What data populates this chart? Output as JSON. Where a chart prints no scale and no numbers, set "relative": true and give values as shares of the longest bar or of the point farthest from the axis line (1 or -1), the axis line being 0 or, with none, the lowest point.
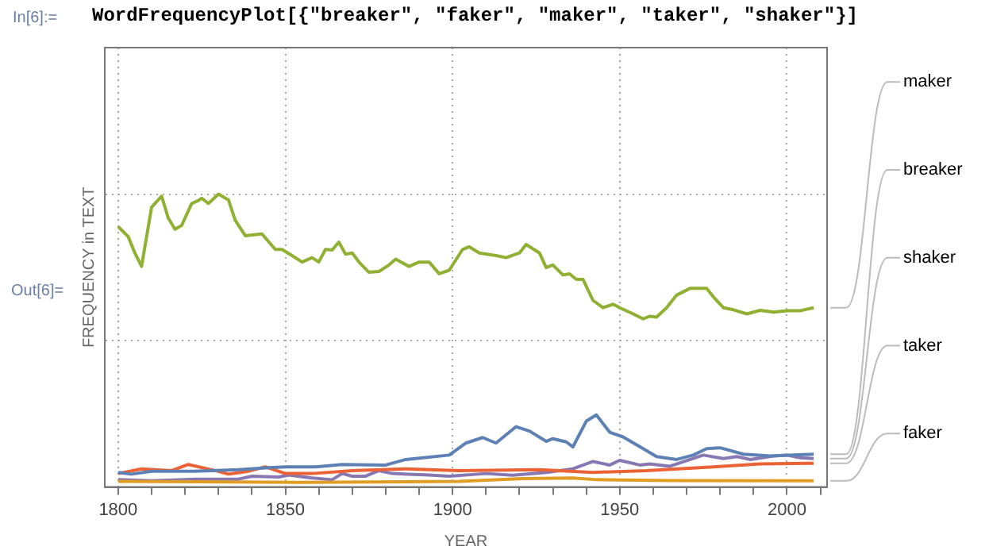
{
  "chart_data": {
    "type": "line",
    "relative": true,
    "xlabel": "YEAR",
    "ylabel": "FREQUENCY in TEXT",
    "annotations": [
      "In[6]:=",
      "WordFrequencyPlot[{\"breaker\", \"faker\", \"maker\", \"taker\", \"shaker\"}]",
      "Out[6]="
    ],
    "xlim": [
      1796,
      2012
    ],
    "xticks": [
      1800,
      {
        "value": 1810,
        "label": null
      },
      {
        "value": 1820,
        "label": null
      },
      {
        "value": 1830,
        "label": null
      },
      {
        "value": 1840,
        "label": null
      },
      1850,
      {
        "value": 1860,
        "label": null
      },
      {
        "value": 1870,
        "label": null
      },
      {
        "value": 1880,
        "label": null
      },
      {
        "value": 1890,
        "label": null
      },
      1900,
      {
        "value": 1910,
        "label": null
      },
      {
        "value": 1920,
        "label": null
      },
      {
        "value": 1930,
        "label": null
      },
      {
        "value": 1940,
        "label": null
      },
      1950,
      {
        "value": 1960,
        "label": null
      },
      {
        "value": 1970,
        "label": null
      },
      {
        "value": 1980,
        "label": null
      },
      {
        "value": 1990,
        "label": null
      },
      2000,
      {
        "value": 2010,
        "label": null
      }
    ],
    "grid": true,
    "marker": "none",
    "line_style": "solid",
    "series": [
      {
        "name": "breaker",
        "color": "#5e81b5",
        "x": [
          1800,
          1804,
          1810,
          1823,
          1836,
          1844,
          1850,
          1859,
          1867,
          1880,
          1886,
          1893,
          1899,
          1904,
          1909,
          1913,
          1919,
          1923,
          1928,
          1930,
          1934,
          1936,
          1940,
          1943,
          1947,
          1951,
          1957,
          1961,
          1967,
          1972,
          1976,
          1980,
          1987,
          1995,
          2008
        ],
        "values": [
          0.05,
          0.044,
          0.054,
          0.054,
          0.059,
          0.065,
          0.069,
          0.069,
          0.077,
          0.075,
          0.094,
          0.102,
          0.109,
          0.15,
          0.169,
          0.15,
          0.206,
          0.191,
          0.156,
          0.165,
          0.154,
          0.137,
          0.225,
          0.246,
          0.187,
          0.171,
          0.131,
          0.104,
          0.094,
          0.109,
          0.131,
          0.134,
          0.112,
          0.106,
          0.112
        ]
      },
      {
        "name": "faker",
        "color": "#e19c24",
        "x": [
          1800,
          1855,
          1902,
          1921,
          1936,
          1943,
          1965,
          2008
        ],
        "values": [
          0.019,
          0.016,
          0.019,
          0.029,
          0.031,
          0.025,
          0.022,
          0.021
        ]
      },
      {
        "name": "maker",
        "color": "#8fb032",
        "x": [
          1800,
          1803,
          1805,
          1807,
          1810,
          1813,
          1815,
          1817,
          1819,
          1822,
          1824,
          1825,
          1827,
          1830,
          1833,
          1835,
          1838,
          1843,
          1847,
          1849,
          1852,
          1855,
          1858,
          1860,
          1862,
          1864,
          1866,
          1868,
          1870,
          1872,
          1875,
          1878,
          1881,
          1883,
          1887,
          1890,
          1893,
          1896,
          1899,
          1903,
          1905,
          1908,
          1913,
          1916,
          1920,
          1922,
          1926,
          1928,
          1930,
          1933,
          1935,
          1937,
          1939,
          1942,
          1945,
          1948,
          1950,
          1954,
          1957,
          1959,
          1961,
          1964,
          1967,
          1971,
          1976,
          1978,
          1981,
          1984,
          1988,
          1992,
          1996,
          2000,
          2004,
          2008
        ],
        "values": [
          0.889,
          0.855,
          0.799,
          0.753,
          0.955,
          0.993,
          0.918,
          0.88,
          0.893,
          0.968,
          0.978,
          0.986,
          0.968,
          1,
          0.98,
          0.911,
          0.858,
          0.864,
          0.811,
          0.811,
          0.79,
          0.768,
          0.783,
          0.768,
          0.811,
          0.809,
          0.836,
          0.795,
          0.799,
          0.768,
          0.733,
          0.736,
          0.758,
          0.778,
          0.753,
          0.768,
          0.768,
          0.728,
          0.74,
          0.811,
          0.82,
          0.799,
          0.79,
          0.783,
          0.799,
          0.828,
          0.799,
          0.749,
          0.758,
          0.724,
          0.728,
          0.709,
          0.709,
          0.637,
          0.612,
          0.624,
          0.612,
          0.591,
          0.574,
          0.583,
          0.58,
          0.612,
          0.655,
          0.678,
          0.678,
          0.649,
          0.612,
          0.605,
          0.591,
          0.603,
          0.597,
          0.602,
          0.602,
          0.612
        ]
      },
      {
        "name": "taker",
        "color": "#eb6235",
        "x": [
          1800,
          1807,
          1816,
          1821,
          1829,
          1833,
          1839,
          1844,
          1850,
          1858,
          1870,
          1886,
          1902,
          1926,
          1942,
          1958,
          1978,
          1992,
          2008
        ],
        "values": [
          0.046,
          0.062,
          0.056,
          0.077,
          0.056,
          0.044,
          0.054,
          0.069,
          0.046,
          0.046,
          0.056,
          0.062,
          0.056,
          0.059,
          0.05,
          0.056,
          0.069,
          0.079,
          0.081
        ]
      },
      {
        "name": "shaker",
        "color": "#8778b3",
        "x": [
          1800,
          1810,
          1823,
          1836,
          1840,
          1848,
          1851,
          1858,
          1864,
          1867,
          1870,
          1874,
          1878,
          1882,
          1893,
          1899,
          1910,
          1918,
          1928,
          1936,
          1942,
          1947,
          1950,
          1956,
          1959,
          1965,
          1975,
          1981,
          1985,
          1989,
          1996,
          2000,
          2004,
          2008
        ],
        "values": [
          0.025,
          0.021,
          0.027,
          0.027,
          0.037,
          0.034,
          0.041,
          0.031,
          0.025,
          0.046,
          0.037,
          0.037,
          0.056,
          0.046,
          0.041,
          0.037,
          0.046,
          0.04,
          0.05,
          0.062,
          0.087,
          0.075,
          0.091,
          0.075,
          0.079,
          0.071,
          0.109,
          0.097,
          0.104,
          0.094,
          0.106,
          0.109,
          0.1,
          0.097
        ]
      }
    ]
  }
}
